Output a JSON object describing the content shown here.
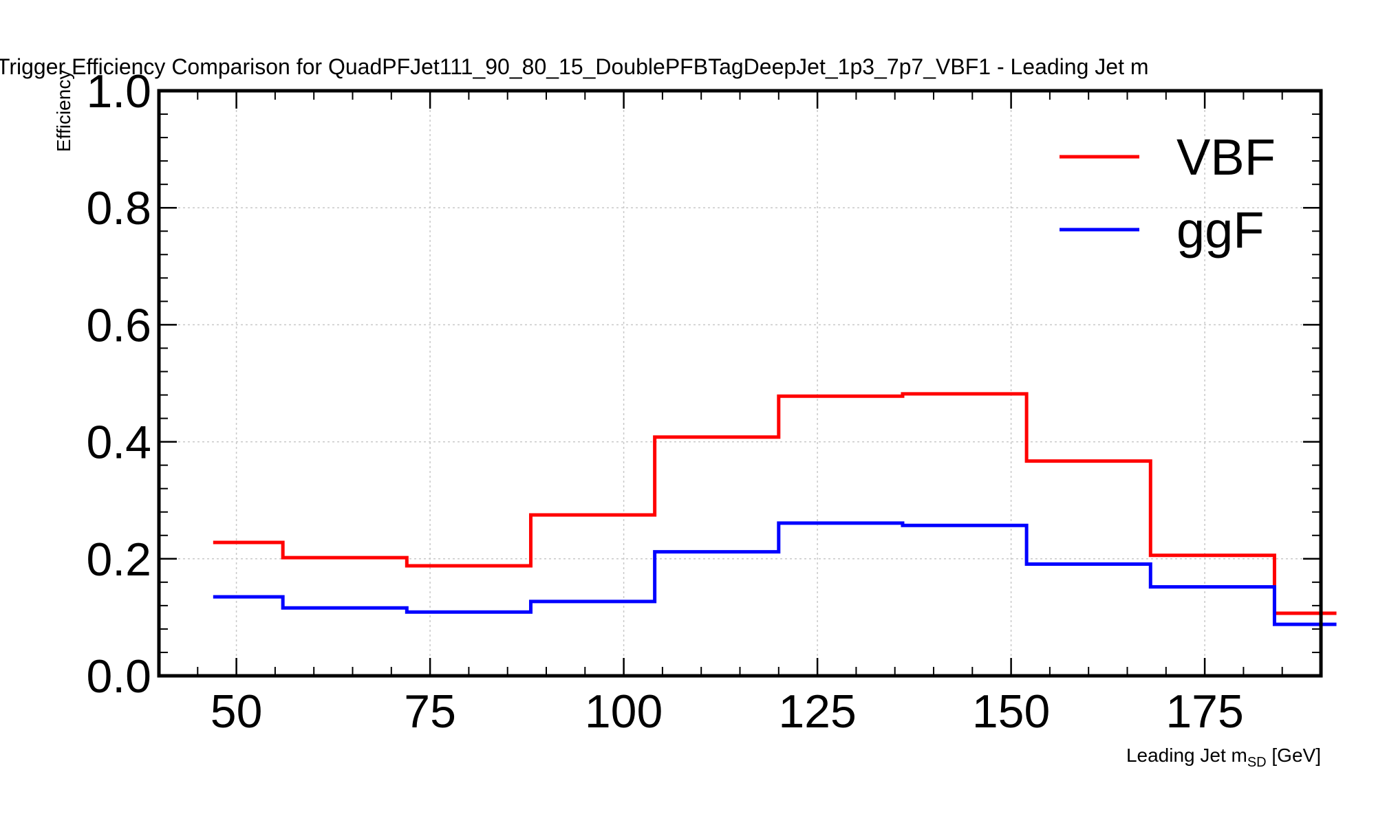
{
  "chart_data": {
    "type": "line",
    "step": true,
    "title": "Trigger Efficiency Comparison for QuadPFJet111_90_80_15_DoublePFBTagDeepJet_1p3_7p7_VBF1 - Leading Jet m",
    "xlabel_main": "Leading Jet m",
    "xlabel_sub": "SD",
    "xlabel_unit": " [GeV]",
    "ylabel": "Efficiency",
    "xlim": [
      40,
      190
    ],
    "ylim": [
      0.0,
      1.0
    ],
    "xticks": [
      50,
      75,
      100,
      125,
      150,
      175
    ],
    "xtick_labels": [
      "50",
      "75",
      "100",
      "125",
      "150",
      "175"
    ],
    "yticks": [
      0.0,
      0.2,
      0.4,
      0.6,
      0.8,
      1.0
    ],
    "ytick_labels": [
      "0.0",
      "0.2",
      "0.4",
      "0.6",
      "0.8",
      "1.0"
    ],
    "grid": true,
    "legend_position": "top-right",
    "bin_edges": [
      47,
      56,
      72,
      88,
      104,
      120,
      136,
      152,
      168,
      184,
      192
    ],
    "series": [
      {
        "name": "VBF",
        "color": "#ff0000",
        "values": [
          0.228,
          0.202,
          0.188,
          0.275,
          0.408,
          0.478,
          0.482,
          0.367,
          0.206,
          0.107
        ]
      },
      {
        "name": "ggF",
        "color": "#0000ff",
        "values": [
          0.135,
          0.116,
          0.109,
          0.127,
          0.212,
          0.261,
          0.257,
          0.191,
          0.152,
          0.088
        ]
      }
    ]
  }
}
